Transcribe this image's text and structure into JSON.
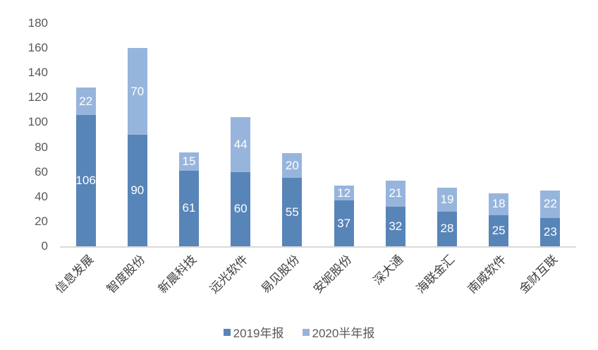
{
  "chart_data": {
    "type": "bar",
    "stacked": true,
    "title": "",
    "xlabel": "",
    "ylabel": "",
    "ylim": [
      0,
      180
    ],
    "yticks": [
      0,
      20,
      40,
      60,
      80,
      100,
      120,
      140,
      160,
      180
    ],
    "grid": false,
    "legend_position": "bottom",
    "categories": [
      "信息发展",
      "智度股份",
      "新晨科技",
      "远光软件",
      "易见股份",
      "安妮股份",
      "深大通",
      "海联金汇",
      "南威软件",
      "金财互联"
    ],
    "series": [
      {
        "name": "2019年报",
        "color": "#5885b8",
        "values": [
          106,
          90,
          61,
          60,
          55,
          37,
          32,
          28,
          25,
          23
        ]
      },
      {
        "name": "2020半年报",
        "color": "#97b5dc",
        "values": [
          22,
          70,
          15,
          44,
          20,
          12,
          21,
          19,
          18,
          22
        ]
      }
    ],
    "data_labels": true
  },
  "legend": {
    "items": [
      {
        "label": "2019年报",
        "color": "#5885b8"
      },
      {
        "label": "2020半年报",
        "color": "#97b5dc"
      }
    ]
  }
}
